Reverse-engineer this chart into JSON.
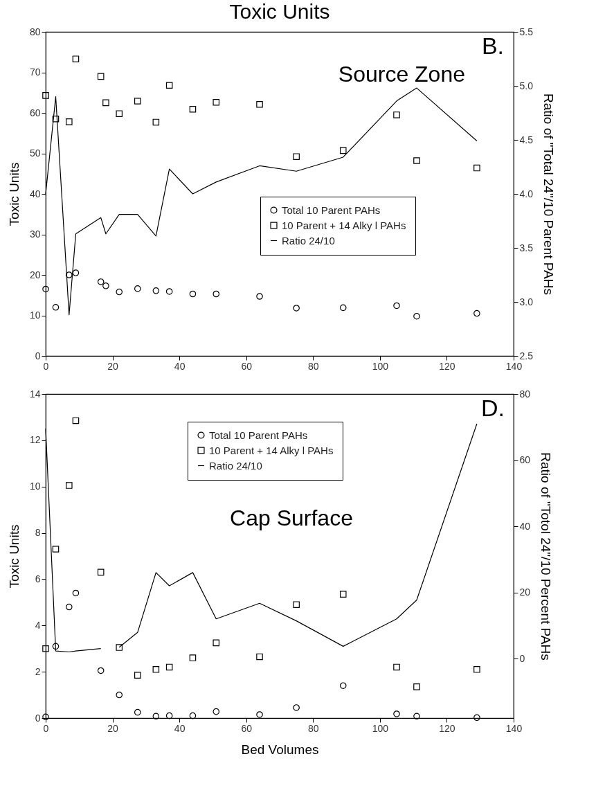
{
  "chart_data": [
    {
      "type": "scatter",
      "title": "Toxic Units",
      "ylabel": "Toxic Units",
      "y2label": "Ratio of \"Total 24\"/10 Parent PAHs",
      "annotations": [
        "B.",
        "Source Zone"
      ],
      "legend": "right",
      "grid": false,
      "xlim": [
        0,
        140
      ],
      "xticks": [
        0,
        20,
        40,
        60,
        80,
        100,
        120,
        140
      ],
      "ylim": [
        0,
        80
      ],
      "yticks": [
        0,
        10,
        20,
        30,
        40,
        50,
        60,
        70,
        80
      ],
      "y2lim": [
        2.5,
        5.5
      ],
      "y2ticks": [
        2.5,
        {
          "value": 3,
          "label": "3.0"
        },
        3.5,
        {
          "value": 4,
          "label": "4.0"
        },
        4.5,
        {
          "value": 5,
          "label": "5.0"
        },
        5.5
      ],
      "series": [
        {
          "name": "Total 10 Parent PAHs",
          "type": "scatter",
          "marker": "circle",
          "color": "#000000",
          "x": [
            0,
            3,
            7,
            9,
            16.5,
            18,
            22,
            27.5,
            33,
            37,
            44,
            51,
            64,
            75,
            89,
            105,
            111,
            129
          ],
          "values": [
            16.5,
            12,
            20,
            20.5,
            18.3,
            17.3,
            15.8,
            16.6,
            16.1,
            15.9,
            15.3,
            15.3,
            14.7,
            11.8,
            11.9,
            12.4,
            9.8,
            10.5
          ]
        },
        {
          "name": "10 Parent + 14 Alky l PAHs",
          "type": "scatter",
          "marker": "square",
          "color": "#000000",
          "x": [
            0,
            3,
            7,
            9,
            16.5,
            18,
            22,
            27.5,
            33,
            37,
            44,
            51,
            64,
            75,
            89,
            105,
            111,
            129
          ],
          "values": [
            64.3,
            58.5,
            57.8,
            73.3,
            69,
            62.5,
            59.8,
            62.9,
            57.7,
            66.8,
            60.9,
            62.6,
            62.1,
            49.2,
            50.7,
            59.5,
            48.2,
            46.4
          ]
        },
        {
          "name": "Ratio 24/10",
          "type": "line",
          "axis": "y2",
          "marker": "none",
          "color": "#000000",
          "x": [
            0,
            3,
            7,
            9,
            16.5,
            18,
            22,
            27.5,
            33,
            37,
            44,
            51,
            64,
            75,
            89,
            105,
            111,
            129
          ],
          "values": [
            4.0,
            4.9,
            2.88,
            3.63,
            3.78,
            3.63,
            3.81,
            3.81,
            3.61,
            4.23,
            4.0,
            4.11,
            4.26,
            4.21,
            4.34,
            4.86,
            4.98,
            4.49
          ]
        }
      ]
    },
    {
      "type": "scatter",
      "xlabel": "Bed Volumes",
      "ylabel": "Toxic Units",
      "y2label": "Ratio of \"Totol 24\"/10 Percent PAHs",
      "annotations": [
        "D.",
        "Cap Surface"
      ],
      "legend": "top",
      "grid": false,
      "xlim": [
        0,
        140
      ],
      "xticks": [
        0,
        20,
        40,
        60,
        80,
        100,
        120,
        140
      ],
      "ylim": [
        0,
        14
      ],
      "yticks": [
        0,
        2,
        4,
        6,
        8,
        10,
        12,
        14
      ],
      "y2lim": [
        -18,
        80
      ],
      "y2ticks": [
        0,
        20,
        40,
        60,
        80
      ],
      "series": [
        {
          "name": "Total 10 Parent PAHs",
          "type": "scatter",
          "marker": "circle",
          "color": "#000000",
          "x": [
            0,
            3,
            7,
            9,
            16.5,
            22,
            27.5,
            33,
            37,
            44,
            51,
            64,
            75,
            89,
            105,
            111,
            129
          ],
          "values": [
            0.05,
            3.1,
            4.8,
            5.4,
            2.05,
            1.0,
            0.25,
            0.08,
            0.1,
            0.1,
            0.28,
            0.15,
            0.45,
            1.4,
            0.18,
            0.08,
            0.02
          ]
        },
        {
          "name": "10 Parent + 14 Alky l PAHs",
          "type": "scatter",
          "marker": "square",
          "color": "#000000",
          "x": [
            0,
            3,
            7,
            9,
            16.5,
            22,
            27.5,
            33,
            37,
            44,
            51,
            64,
            75,
            89,
            105,
            111,
            129
          ],
          "values": [
            3.0,
            7.3,
            10.05,
            12.85,
            6.3,
            3.05,
            1.85,
            2.1,
            2.2,
            2.6,
            3.25,
            2.65,
            4.9,
            5.35,
            2.2,
            1.35,
            2.1
          ]
        },
        {
          "name": "Ratio 24/10",
          "type": "line",
          "axis": "y2",
          "marker": "none",
          "color": "#000000",
          "x": [
            0,
            3,
            7,
            9,
            16.5,
            18,
            22,
            27.5,
            33,
            37,
            44,
            51,
            64,
            75,
            89,
            105,
            111,
            129
          ],
          "values": [
            69.5,
            2.3,
            2,
            2.3,
            3,
            null,
            3.4,
            7.9,
            26,
            22,
            26,
            12,
            16.7,
            11.4,
            3.7,
            12,
            17.7,
            71
          ]
        }
      ]
    }
  ]
}
